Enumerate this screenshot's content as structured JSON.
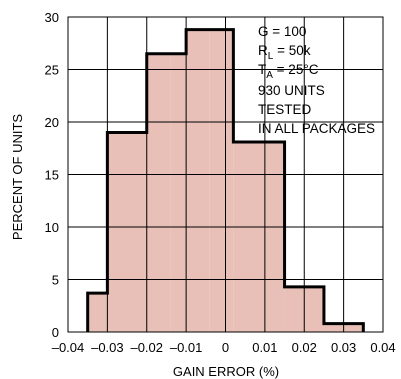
{
  "chart_data": {
    "type": "bar",
    "title": "",
    "xlabel": "GAIN ERROR (%)",
    "ylabel": "PERCENT OF UNITS",
    "xlim": [
      -0.04,
      0.04
    ],
    "ylim": [
      0,
      30
    ],
    "x_ticks": [
      -0.04,
      -0.03,
      -0.02,
      -0.01,
      0,
      0.01,
      0.02,
      0.03,
      0.04
    ],
    "x_tick_labels": [
      "–0.04",
      "–0.03",
      "–0.02",
      "–0.01",
      "0",
      "0.01",
      "0.02",
      "0.03",
      "0.04"
    ],
    "y_ticks": [
      0,
      5,
      10,
      15,
      20,
      25,
      30
    ],
    "y_tick_labels": [
      "0",
      "5",
      "10",
      "15",
      "20",
      "25",
      "30"
    ],
    "grid": true,
    "bins": [
      {
        "x0": -0.035,
        "x1": -0.03,
        "value": 3.7
      },
      {
        "x0": -0.03,
        "x1": -0.02,
        "value": 19.0
      },
      {
        "x0": -0.02,
        "x1": -0.014,
        "value": 26.5
      },
      {
        "x0": -0.014,
        "x1": -0.01,
        "value": 26.5
      },
      {
        "x0": -0.01,
        "x1": -0.004,
        "value": 28.8
      },
      {
        "x0": -0.004,
        "x1": 0.002,
        "value": 28.8
      },
      {
        "x0": 0.002,
        "x1": 0.01,
        "value": 18.1
      },
      {
        "x0": 0.01,
        "x1": 0.015,
        "value": 18.1
      },
      {
        "x0": 0.015,
        "x1": 0.02,
        "value": 4.3
      },
      {
        "x0": 0.02,
        "x1": 0.025,
        "value": 4.3
      },
      {
        "x0": 0.025,
        "x1": 0.03,
        "value": 0.8
      },
      {
        "x0": 0.03,
        "x1": 0.035,
        "value": 0.8
      }
    ],
    "annotations": {
      "g": "G = 100",
      "rl_main": "R",
      "rl_sub": "L",
      "rl_rest": " = 50k",
      "ta_main": "T",
      "ta_sub": "A",
      "ta_rest": " = 25°C",
      "units": "930 UNITS",
      "tested": "TESTED",
      "packages": "IN ALL PACKAGES"
    },
    "colors": {
      "fill": "#e8c0b8",
      "outline": "#000000",
      "grid": "#000000"
    }
  }
}
